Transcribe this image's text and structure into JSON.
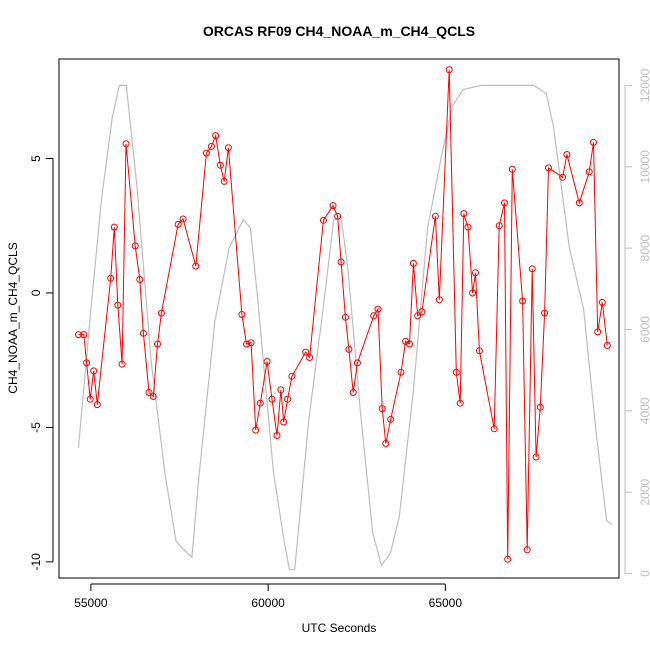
{
  "chart_data": {
    "type": "line",
    "title": "ORCAS RF09 CH4_NOAA_m_CH4_QCLS",
    "xlabel": "UTC Seconds",
    "ylabel": "CH4_NOAA_m_CH4_QCLS",
    "xlim": [
      54100,
      69900
    ],
    "ylim": [
      -10.6,
      8.7
    ],
    "y2lim": [
      -110,
      12650
    ],
    "x_ticks": [
      55000,
      60000,
      65000
    ],
    "x_tick_labels": [
      "55000",
      "60000",
      "65000"
    ],
    "y_ticks": [
      -10,
      -5,
      0,
      5
    ],
    "y_tick_labels": [
      "-10",
      "-5",
      "0",
      "5"
    ],
    "y2_ticks": [
      0,
      2000,
      4000,
      6000,
      8000,
      10000,
      12000
    ],
    "y2_tick_labels": [
      "0",
      "2000",
      "4000",
      "6000",
      "8000",
      "10000",
      "12000"
    ],
    "grid": false,
    "colors": {
      "difference": "#ff0000",
      "altitude": "#bebebe",
      "axes": "#000000"
    },
    "series": [
      {
        "role": "difference",
        "axis": "left",
        "style": "line-with-open-circles",
        "points": [
          [
            54650,
            -1.55
          ],
          [
            54800,
            -1.55
          ],
          [
            54880,
            -2.6
          ],
          [
            54980,
            -3.95
          ],
          [
            55080,
            -2.9
          ],
          [
            55180,
            -4.15
          ],
          [
            55560,
            0.55
          ],
          [
            55660,
            2.45
          ],
          [
            55760,
            -0.45
          ],
          [
            55880,
            -2.65
          ],
          [
            55990,
            5.55
          ],
          [
            56250,
            1.75
          ],
          [
            56380,
            0.5
          ],
          [
            56480,
            -1.5
          ],
          [
            56640,
            -3.7
          ],
          [
            56760,
            -3.85
          ],
          [
            56880,
            -1.9
          ],
          [
            56990,
            -0.75
          ],
          [
            57460,
            2.55
          ],
          [
            57600,
            2.75
          ],
          [
            57960,
            1.0
          ],
          [
            58260,
            5.2
          ],
          [
            58400,
            5.45
          ],
          [
            58520,
            5.85
          ],
          [
            58650,
            4.75
          ],
          [
            58760,
            4.15
          ],
          [
            58880,
            5.4
          ],
          [
            59260,
            -0.8
          ],
          [
            59390,
            -1.9
          ],
          [
            59520,
            -1.85
          ],
          [
            59650,
            -5.1
          ],
          [
            59780,
            -4.1
          ],
          [
            59970,
            -2.55
          ],
          [
            60110,
            -3.95
          ],
          [
            60250,
            -5.3
          ],
          [
            60360,
            -3.6
          ],
          [
            60440,
            -4.8
          ],
          [
            60550,
            -3.95
          ],
          [
            60670,
            -3.1
          ],
          [
            61060,
            -2.2
          ],
          [
            61170,
            -2.4
          ],
          [
            61560,
            2.7
          ],
          [
            61830,
            3.25
          ],
          [
            61960,
            2.85
          ],
          [
            62060,
            1.15
          ],
          [
            62180,
            -0.9
          ],
          [
            62280,
            -2.1
          ],
          [
            62400,
            -3.7
          ],
          [
            62520,
            -2.6
          ],
          [
            62980,
            -0.85
          ],
          [
            63100,
            -0.6
          ],
          [
            63220,
            -4.3
          ],
          [
            63320,
            -5.6
          ],
          [
            63460,
            -4.7
          ],
          [
            63750,
            -2.95
          ],
          [
            63880,
            -1.8
          ],
          [
            63990,
            -1.9
          ],
          [
            64100,
            1.1
          ],
          [
            64220,
            -0.85
          ],
          [
            64340,
            -0.7
          ],
          [
            64720,
            2.85
          ],
          [
            64830,
            -0.25
          ],
          [
            65110,
            8.3
          ],
          [
            65310,
            -2.95
          ],
          [
            65420,
            -4.1
          ],
          [
            65520,
            2.95
          ],
          [
            65640,
            2.45
          ],
          [
            65770,
            0.0
          ],
          [
            65850,
            0.75
          ],
          [
            65960,
            -2.15
          ],
          [
            66380,
            -5.05
          ],
          [
            66520,
            2.5
          ],
          [
            66670,
            3.35
          ],
          [
            66760,
            -9.9
          ],
          [
            66890,
            4.6
          ],
          [
            67180,
            -0.3
          ],
          [
            67310,
            -9.55
          ],
          [
            67450,
            0.9
          ],
          [
            67560,
            -6.1
          ],
          [
            67680,
            -4.25
          ],
          [
            67800,
            -0.75
          ],
          [
            67910,
            4.65
          ],
          [
            68310,
            4.3
          ],
          [
            68430,
            5.15
          ],
          [
            68780,
            3.35
          ],
          [
            69060,
            4.5
          ],
          [
            69180,
            5.6
          ],
          [
            69300,
            -1.45
          ],
          [
            69430,
            -0.35
          ],
          [
            69570,
            -1.95
          ]
        ]
      },
      {
        "role": "altitude",
        "axis": "right",
        "style": "line",
        "points": [
          [
            54650,
            3100
          ],
          [
            55000,
            6500
          ],
          [
            55300,
            9200
          ],
          [
            55600,
            11200
          ],
          [
            55800,
            12000
          ],
          [
            56000,
            12000
          ],
          [
            56300,
            9500
          ],
          [
            56700,
            5200
          ],
          [
            57100,
            2400
          ],
          [
            57400,
            800
          ],
          [
            57600,
            600
          ],
          [
            57850,
            400
          ],
          [
            58050,
            2400
          ],
          [
            58500,
            6200
          ],
          [
            58900,
            8000
          ],
          [
            59300,
            8700
          ],
          [
            59500,
            8500
          ],
          [
            59700,
            6800
          ],
          [
            60150,
            2500
          ],
          [
            60450,
            800
          ],
          [
            60600,
            100
          ],
          [
            60750,
            100
          ],
          [
            61150,
            3800
          ],
          [
            61550,
            6500
          ],
          [
            61850,
            8700
          ],
          [
            62050,
            8800
          ],
          [
            62250,
            7500
          ],
          [
            62600,
            4000
          ],
          [
            62950,
            1000
          ],
          [
            63200,
            200
          ],
          [
            63450,
            500
          ],
          [
            63700,
            1400
          ],
          [
            64100,
            4500
          ],
          [
            64500,
            8500
          ],
          [
            64900,
            10300
          ],
          [
            65200,
            11500
          ],
          [
            65500,
            11900
          ],
          [
            66000,
            12000
          ],
          [
            66500,
            12000
          ],
          [
            67000,
            12000
          ],
          [
            67500,
            12000
          ],
          [
            67850,
            11800
          ],
          [
            68050,
            11000
          ],
          [
            68500,
            8000
          ],
          [
            68900,
            6500
          ],
          [
            69250,
            3500
          ],
          [
            69550,
            1300
          ],
          [
            69700,
            1200
          ]
        ]
      }
    ]
  }
}
